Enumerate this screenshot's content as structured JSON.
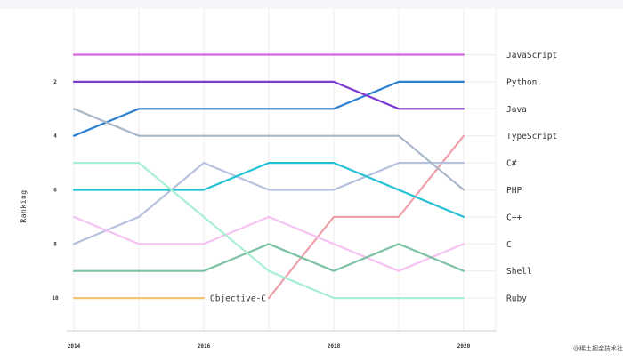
{
  "chart_data": {
    "type": "line",
    "title": "",
    "xlabel": "",
    "ylabel": "Ranking",
    "x": [
      2014,
      2015,
      2016,
      2017,
      2018,
      2019,
      2020
    ],
    "xticks": [
      "2014",
      "2016",
      "2018",
      "2020"
    ],
    "yticks": [
      "2",
      "4",
      "6",
      "8",
      "10"
    ],
    "xlim": [
      2014,
      2020.5
    ],
    "ylim": [
      11,
      0.5
    ],
    "y_inverted": true,
    "grid": "vertical",
    "legend": "right-end labels",
    "series": [
      {
        "name": "JavaScript",
        "color": "#d864e0",
        "values": [
          1,
          1,
          1,
          1,
          1,
          1,
          1
        ]
      },
      {
        "name": "Python",
        "color": "#2c7fd1",
        "values": [
          4,
          3,
          3,
          3,
          3,
          2,
          2
        ]
      },
      {
        "name": "Java",
        "color": "#7d3ad1",
        "values": [
          2,
          2,
          2,
          2,
          2,
          3,
          3
        ]
      },
      {
        "name": "TypeScript",
        "color": "#f0a0aa",
        "values": [
          null,
          null,
          null,
          10,
          7,
          7,
          4
        ]
      },
      {
        "name": "C#",
        "color": "#b6c2df",
        "values": [
          8,
          7,
          5,
          6,
          6,
          5,
          5
        ]
      },
      {
        "name": "PHP",
        "color": "#a9b8c8",
        "values": [
          3,
          4,
          4,
          4,
          4,
          4,
          6
        ]
      },
      {
        "name": "C++",
        "color": "#22c1d6",
        "values": [
          6,
          6,
          6,
          5,
          5,
          6,
          7
        ]
      },
      {
        "name": "C",
        "color": "#f6c3f2",
        "values": [
          7,
          8,
          8,
          7,
          8,
          9,
          8
        ]
      },
      {
        "name": "Shell",
        "color": "#7ec2a4",
        "values": [
          9,
          9,
          9,
          8,
          9,
          8,
          9
        ]
      },
      {
        "name": "Ruby",
        "color": "#a9efd2",
        "values": [
          5,
          5,
          7,
          9,
          10,
          10,
          10
        ]
      },
      {
        "name": "Objective-C",
        "color": "#f2c277",
        "values": [
          10,
          10,
          10,
          null,
          null,
          null,
          null
        ]
      }
    ],
    "inline_labels": [
      {
        "text": "Objective-C",
        "series": "Objective-C",
        "x": 2016,
        "y": 10
      }
    ]
  },
  "watermark": "@稀土掘金技术社区"
}
